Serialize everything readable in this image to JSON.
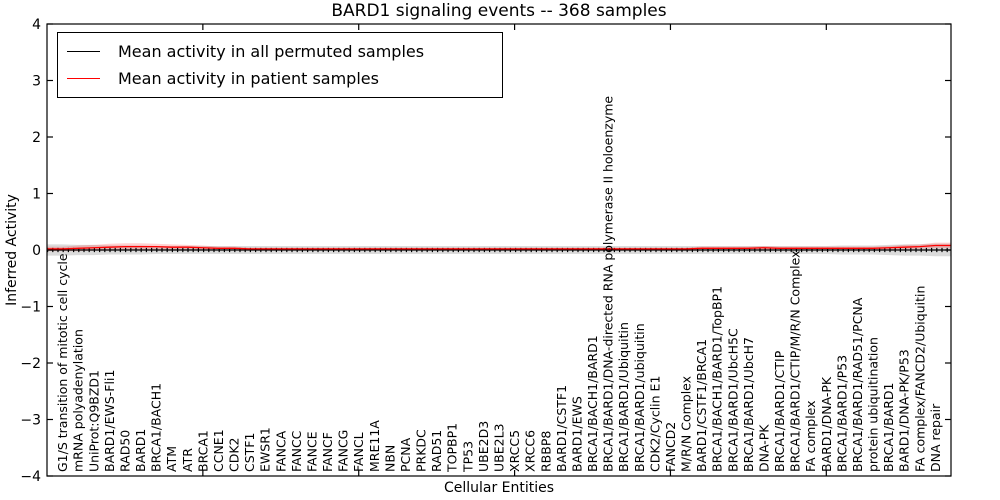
{
  "title": "BARD1 signaling events -- 368 samples",
  "legend": {
    "entries": [
      {
        "label": "Mean activity in all permuted samples",
        "color": "#000000"
      },
      {
        "label": "Mean activity in patient samples",
        "color": "#ff0000"
      }
    ],
    "position": "upper left"
  },
  "axes": {
    "ylabel": "Inferred Activity",
    "xlabel": "Cellular Entities",
    "ytick_values": [
      4,
      3,
      2,
      1,
      0,
      -1,
      -2,
      -3,
      -4
    ],
    "ytick_labels": [
      "4",
      "3",
      "2",
      "1",
      "0",
      "−1",
      "−2",
      "−3",
      "−4"
    ],
    "ylim": [
      -4,
      4
    ]
  },
  "chart_data": {
    "type": "line",
    "title": "BARD1 signaling events -- 368 samples",
    "xlabel": "Cellular Entities",
    "ylabel": "Inferred Activity",
    "ylim": [
      -4,
      4
    ],
    "grid": false,
    "legend_position": "upper left",
    "x_major_tick_indices": [
      10,
      20,
      30,
      40,
      50
    ],
    "categories": [
      "G1/S transition of mitotic cell cycle",
      "mRNA polyadenylation",
      "UniProt:Q9BZD1",
      "BARD1/EWS-Fli1",
      "RAD50",
      "BARD1",
      "BRCA1/BACH1",
      "ATM",
      "ATR",
      "BRCA1",
      "CCNE1",
      "CDK2",
      "CSTF1",
      "EWSR1",
      "FANCA",
      "FANCC",
      "FANCE",
      "FANCF",
      "FANCG",
      "FANCL",
      "MRE11A",
      "NBN",
      "PCNA",
      "PRKDC",
      "RAD51",
      "TOPBP1",
      "TP53",
      "UBE2D3",
      "UBE2L3",
      "XRCC5",
      "XRCC6",
      "RBBP8",
      "BARD1/CSTF1",
      "BARD1/EWS",
      "BRCA1/BACH1/BARD1",
      "BRCA1/BARD1/DNA-directed RNA polymerase II holoenzyme",
      "BRCA1/BARD1/Ubiquitin",
      "BRCA1/BARD1/ubiquitin",
      "CDK2/Cyclin E1",
      "FANCD2",
      "M/R/N Complex",
      "BARD1/CSTF1/BRCA1",
      "BRCA1/BACH1/BARD1/TopBP1",
      "BRCA1/BARD1/UbcH5C",
      "BRCA1/BARD1/UbcH7",
      "DNA-PK",
      "BRCA1/BARD1/CTIP",
      "BRCA1/BARD1/CTIP/M/R/N Complex",
      "FA complex",
      "BARD1/DNA-PK",
      "BRCA1/BARD1/P53",
      "BRCA1/BARD1/RAD51/PCNA",
      "protein ubiquitination",
      "BRCA1/BARD1",
      "BARD1/DNA-PK/P53",
      "FA complex/FANCD2/Ubiquitin",
      "DNA repair"
    ],
    "series": [
      {
        "name": "Mean activity in all permuted samples",
        "color": "#000000",
        "marker": "|",
        "band_color": "rgba(0,0,0,0.14)",
        "values": [
          0,
          0,
          0,
          0,
          0,
          0,
          0,
          0,
          0,
          0,
          0,
          0,
          0,
          0,
          0,
          0,
          0,
          0,
          0,
          0,
          0,
          0,
          0,
          0,
          0,
          0,
          0,
          0,
          0,
          0,
          0,
          0,
          0,
          0,
          0,
          0,
          0,
          0,
          0,
          0,
          0,
          0,
          0,
          0,
          0,
          0,
          0,
          0,
          0,
          0,
          0,
          0,
          0,
          0,
          0,
          0,
          0
        ],
        "band_halfwidth": [
          0.1,
          0.09,
          0.09,
          0.08,
          0.08,
          0.08,
          0.07,
          0.07,
          0.07,
          0.07,
          0.07,
          0.07,
          0.07,
          0.07,
          0.07,
          0.07,
          0.07,
          0.07,
          0.07,
          0.07,
          0.07,
          0.07,
          0.07,
          0.07,
          0.07,
          0.07,
          0.07,
          0.07,
          0.07,
          0.07,
          0.07,
          0.07,
          0.07,
          0.07,
          0.07,
          0.07,
          0.07,
          0.07,
          0.07,
          0.07,
          0.07,
          0.07,
          0.07,
          0.07,
          0.07,
          0.07,
          0.07,
          0.07,
          0.07,
          0.07,
          0.08,
          0.08,
          0.08,
          0.09,
          0.1,
          0.1,
          0.11
        ]
      },
      {
        "name": "Mean activity in patient samples",
        "color": "#ff0000",
        "marker": "none",
        "band_color": "rgba(255,0,0,0.18)",
        "values": [
          0.02,
          0.03,
          0.04,
          0.05,
          0.06,
          0.06,
          0.06,
          0.05,
          0.05,
          0.04,
          0.03,
          0.03,
          0.02,
          0.02,
          0.02,
          0.02,
          0.02,
          0.02,
          0.02,
          0.02,
          0.02,
          0.02,
          0.02,
          0.02,
          0.02,
          0.02,
          0.02,
          0.02,
          0.02,
          0.02,
          0.02,
          0.02,
          0.02,
          0.02,
          0.02,
          0.02,
          0.02,
          0.02,
          0.02,
          0.02,
          0.02,
          0.03,
          0.03,
          0.03,
          0.03,
          0.04,
          0.03,
          0.03,
          0.03,
          0.03,
          0.03,
          0.03,
          0.03,
          0.04,
          0.05,
          0.06,
          0.08
        ],
        "band_halfwidth": [
          0.04,
          0.05,
          0.05,
          0.06,
          0.06,
          0.06,
          0.05,
          0.05,
          0.04,
          0.04,
          0.03,
          0.03,
          0.02,
          0.02,
          0.02,
          0.02,
          0.02,
          0.02,
          0.02,
          0.02,
          0.02,
          0.02,
          0.02,
          0.02,
          0.02,
          0.02,
          0.02,
          0.02,
          0.02,
          0.02,
          0.02,
          0.02,
          0.02,
          0.02,
          0.02,
          0.02,
          0.02,
          0.02,
          0.02,
          0.02,
          0.02,
          0.03,
          0.03,
          0.03,
          0.03,
          0.03,
          0.03,
          0.03,
          0.03,
          0.03,
          0.03,
          0.03,
          0.03,
          0.03,
          0.04,
          0.04,
          0.05
        ]
      }
    ]
  }
}
